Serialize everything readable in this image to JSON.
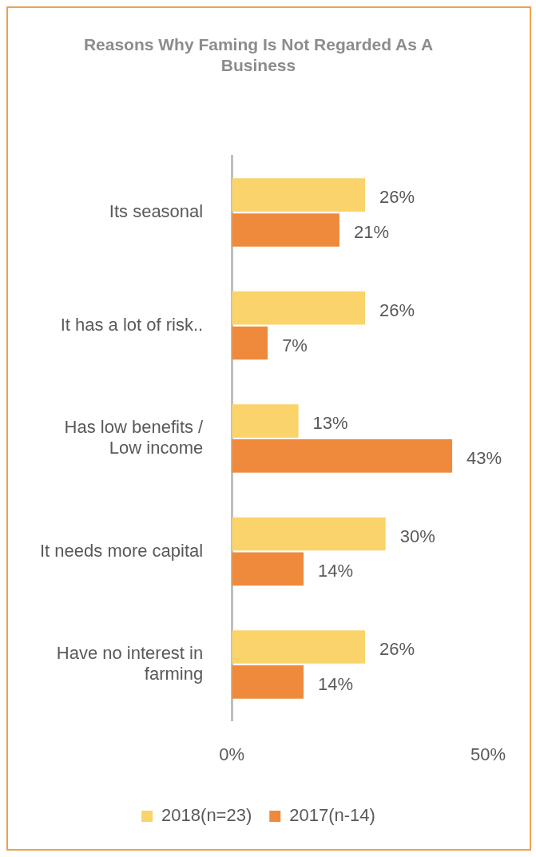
{
  "chart_data": {
    "type": "bar",
    "orientation": "horizontal",
    "title": "Reasons Why Faming Is Not Regarded As A Business",
    "categories": [
      "Its seasonal",
      "It has a lot of risk..",
      "Has low benefits / Low income",
      "It needs more capital",
      "Have no interest in farming"
    ],
    "series": [
      {
        "name": "2018(n=23)",
        "color": "#fbd36b",
        "values": [
          26,
          26,
          13,
          30,
          26
        ],
        "value_labels": [
          "26%",
          "26%",
          "13%",
          "30%",
          "26%"
        ]
      },
      {
        "name": "2017(n-14)",
        "color": "#ef8a3c",
        "values": [
          21,
          7,
          43,
          14,
          14
        ],
        "value_labels": [
          "21%",
          "7%",
          "43%",
          "14%",
          "14%"
        ]
      }
    ],
    "xlim": [
      0,
      50
    ],
    "xticks": [
      {
        "value": 0,
        "label": "0%"
      },
      {
        "value": 50,
        "label": "50%"
      }
    ],
    "grid": false,
    "legend": "bottom"
  }
}
